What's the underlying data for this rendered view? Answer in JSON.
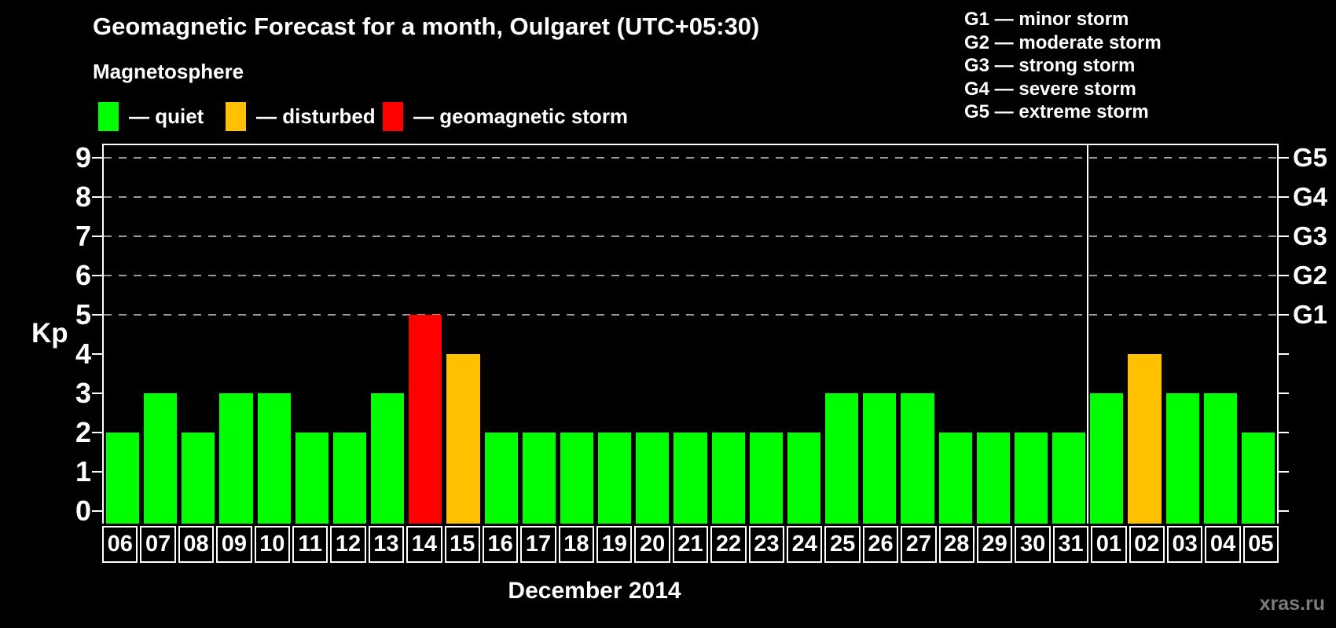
{
  "title": "Geomagnetic Forecast for a month, Oulgaret (UTC+05:30)",
  "subtitle": "Magnetosphere",
  "legend": {
    "items": [
      {
        "label": "— quiet",
        "status": "quiet",
        "color": "#00ff00"
      },
      {
        "label": "— disturbed",
        "status": "disturbed",
        "color": "#ffc000"
      },
      {
        "label": "— geomagnetic storm",
        "status": "storm",
        "color": "#ff0000"
      }
    ]
  },
  "g_legend": [
    "G1 — minor storm",
    "G2 — moderate storm",
    "G3 — strong storm",
    "G4 — severe storm",
    "G5 — extreme storm"
  ],
  "axis": {
    "y_label": "Kp",
    "y_ticks": [
      0,
      1,
      2,
      3,
      4,
      5,
      6,
      7,
      8,
      9
    ],
    "x_label": "December 2014"
  },
  "watermark": "xras.ru",
  "chart_data": {
    "type": "bar",
    "title": "Geomagnetic Forecast for a month, Oulgaret (UTC+05:30)",
    "xlabel": "December 2014",
    "ylabel": "Kp",
    "ylim": [
      0,
      9.6
    ],
    "grid_values": [
      5,
      6,
      7,
      8,
      9
    ],
    "grid_on": true,
    "g_labels": [
      {
        "value": 5,
        "label": "G1"
      },
      {
        "value": 6,
        "label": "G2"
      },
      {
        "value": 7,
        "label": "G3"
      },
      {
        "value": 8,
        "label": "G4"
      },
      {
        "value": 9,
        "label": "G5"
      }
    ],
    "categories": [
      "06",
      "07",
      "08",
      "09",
      "10",
      "11",
      "12",
      "13",
      "14",
      "15",
      "16",
      "17",
      "18",
      "19",
      "20",
      "21",
      "22",
      "23",
      "24",
      "25",
      "26",
      "27",
      "28",
      "29",
      "30",
      "31",
      "01",
      "02",
      "03",
      "04",
      "05"
    ],
    "values": [
      2,
      3,
      2,
      3,
      3,
      2,
      2,
      3,
      5,
      4,
      2,
      2,
      2,
      2,
      2,
      2,
      2,
      2,
      2,
      3,
      3,
      3,
      2,
      2,
      2,
      2,
      3,
      4,
      3,
      3,
      2
    ],
    "statuses": [
      "quiet",
      "quiet",
      "quiet",
      "quiet",
      "quiet",
      "quiet",
      "quiet",
      "quiet",
      "storm",
      "disturbed",
      "quiet",
      "quiet",
      "quiet",
      "quiet",
      "quiet",
      "quiet",
      "quiet",
      "quiet",
      "quiet",
      "quiet",
      "quiet",
      "quiet",
      "quiet",
      "quiet",
      "quiet",
      "quiet",
      "quiet",
      "disturbed",
      "quiet",
      "quiet",
      "quiet"
    ],
    "colors": {
      "quiet": "#00ff00",
      "disturbed": "#ffc000",
      "storm": "#ff0000"
    },
    "month_separator_before_index": 26,
    "axis_color": "#ffffff",
    "grid_color": "#9a9a9a",
    "background": "#000000"
  }
}
